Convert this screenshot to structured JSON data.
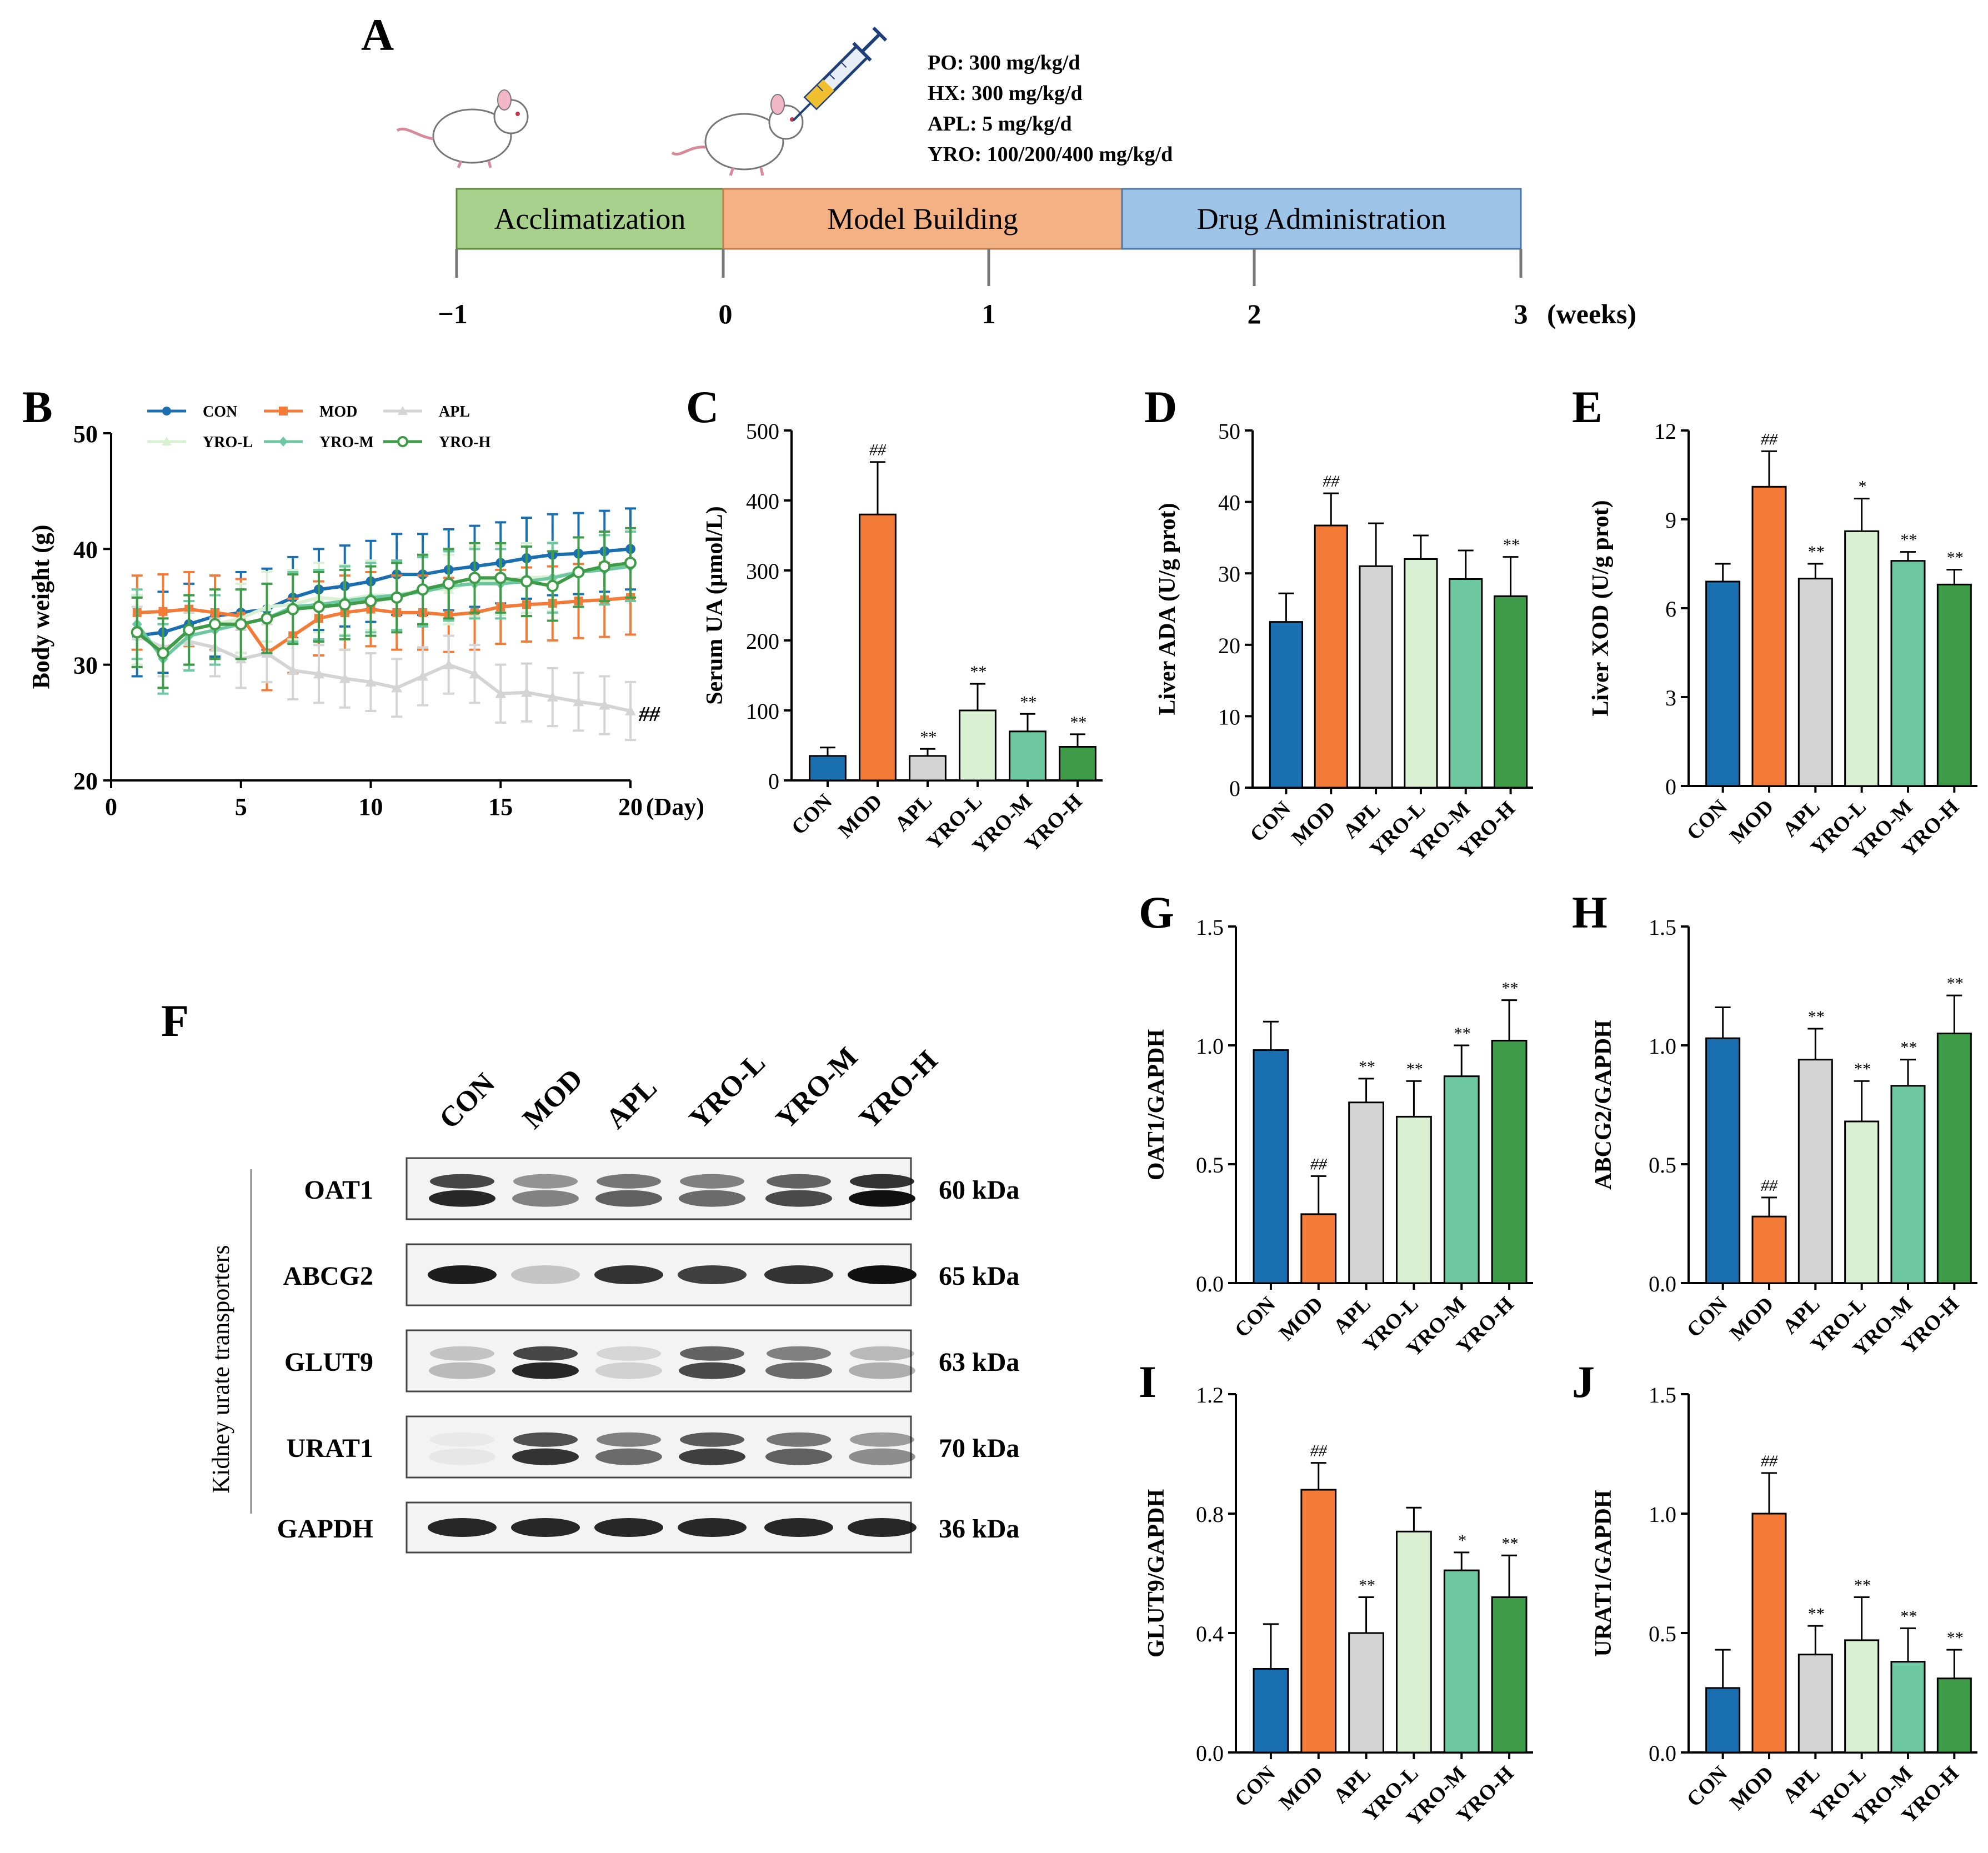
{
  "colors": {
    "CON": "#1a6fb0",
    "MOD": "#f47a37",
    "APL": "#d4d4d4",
    "YRO-L": "#d9f0d3",
    "YRO-M": "#6dc7a0",
    "YRO-H": "#3e9b48",
    "timeline_accl": "#a9d18e",
    "timeline_model": "#f4b183",
    "timeline_drug": "#9dc3e6"
  },
  "panelA": {
    "letter": "A",
    "doses": [
      "PO: 300 mg/kg/d",
      "HX: 300 mg/kg/d",
      "APL: 5 mg/kg/d",
      "YRO: 100/200/400 mg/kg/d"
    ],
    "phases": [
      "Acclimatization",
      "Model Building",
      "Drug Administration"
    ],
    "ticks": [
      "−1",
      "0",
      "1",
      "2",
      "3"
    ],
    "unit": "(weeks)",
    "icons": [
      "mouse-icon",
      "syringe-icon"
    ]
  },
  "panelF": {
    "letter": "F",
    "side_label": "Kidney urate transporters",
    "lanes": [
      "CON",
      "MOD",
      "APL",
      "YRO-L",
      "YRO-M",
      "YRO-H"
    ],
    "proteins": [
      {
        "name": "OAT1",
        "kda": "60 kDa",
        "bands": [
          0.9,
          0.5,
          0.65,
          0.6,
          0.75,
          1.0
        ]
      },
      {
        "name": "ABCG2",
        "kda": "65 kDa",
        "bands": [
          0.95,
          0.2,
          0.85,
          0.8,
          0.85,
          1.0
        ]
      },
      {
        "name": "GLUT9",
        "kda": "63 kDa",
        "bands": [
          0.25,
          0.9,
          0.15,
          0.75,
          0.6,
          0.3
        ]
      },
      {
        "name": "URAT1",
        "kda": "70 kDa",
        "bands": [
          0.05,
          0.85,
          0.6,
          0.8,
          0.65,
          0.45
        ]
      },
      {
        "name": "GAPDH",
        "kda": "36 kDa",
        "bands": [
          0.9,
          0.9,
          0.9,
          0.9,
          0.9,
          0.9
        ]
      }
    ]
  },
  "chart_data": [
    {
      "panel": "B",
      "type": "line",
      "xlabel": "(Day)",
      "ylabel": "Body weight (g)",
      "xlim": [
        0,
        20
      ],
      "ylim": [
        20,
        50
      ],
      "xticks": [
        "0",
        "5",
        "10",
        "15",
        "20"
      ],
      "yticks": [
        "20",
        "30",
        "40",
        "50"
      ],
      "annotation": "##",
      "legend": [
        "CON",
        "MOD",
        "APL",
        "YRO-L",
        "YRO-M",
        "YRO-H"
      ],
      "x": [
        1,
        2,
        3,
        4,
        5,
        6,
        7,
        8,
        9,
        10,
        11,
        12,
        13,
        14,
        15,
        16,
        17,
        18,
        19,
        20
      ],
      "series": [
        {
          "name": "CON",
          "values": [
            32.5,
            32.8,
            33.5,
            34.2,
            34.5,
            34.8,
            35.8,
            36.5,
            36.8,
            37.2,
            37.8,
            37.8,
            38.2,
            38.5,
            38.8,
            39.2,
            39.5,
            39.6,
            39.8,
            40.0
          ],
          "err": 3.5
        },
        {
          "name": "MOD",
          "values": [
            34.5,
            34.6,
            34.8,
            34.5,
            34.2,
            31.0,
            32.5,
            34.0,
            34.5,
            34.8,
            34.5,
            34.5,
            34.3,
            34.5,
            35.0,
            35.2,
            35.3,
            35.5,
            35.6,
            35.8
          ],
          "err": 3.2
        },
        {
          "name": "APL",
          "values": [
            32.5,
            31.5,
            32.0,
            31.5,
            30.5,
            31.0,
            29.5,
            29.2,
            28.8,
            28.5,
            28.0,
            29.0,
            30.0,
            29.2,
            27.5,
            27.6,
            27.2,
            26.8,
            26.5,
            26.0
          ],
          "err": 2.5
        },
        {
          "name": "YRO-L",
          "values": [
            33.0,
            31.0,
            33.0,
            33.5,
            34.0,
            35.0,
            35.2,
            35.8,
            35.6,
            36.0,
            36.0,
            36.5,
            36.5,
            37.2,
            37.3,
            37.5,
            37.6,
            38.0,
            38.5,
            38.8
          ],
          "err": 3.0
        },
        {
          "name": "YRO-M",
          "values": [
            33.5,
            30.5,
            32.5,
            33.0,
            33.5,
            34.0,
            35.0,
            35.2,
            35.5,
            35.8,
            36.0,
            36.3,
            36.8,
            37.0,
            37.0,
            37.2,
            37.5,
            38.0,
            38.2,
            38.5
          ],
          "err": 3.0
        },
        {
          "name": "YRO-H",
          "values": [
            32.8,
            31.0,
            33.0,
            33.5,
            33.5,
            34.0,
            34.8,
            35.0,
            35.2,
            35.5,
            35.8,
            36.5,
            37.0,
            37.5,
            37.5,
            37.2,
            36.8,
            38.0,
            38.5,
            38.8
          ],
          "err": 3.0
        }
      ]
    },
    {
      "panel": "C",
      "type": "bar",
      "ylabel": "Serum UA (μmol/L)",
      "ylim": [
        0,
        500
      ],
      "yticks": [
        "0",
        "100",
        "200",
        "300",
        "400",
        "500"
      ],
      "categories": [
        "CON",
        "MOD",
        "APL",
        "YRO-L",
        "YRO-M",
        "YRO-H"
      ],
      "values": [
        35,
        380,
        35,
        100,
        70,
        48
      ],
      "errors": [
        12,
        75,
        10,
        38,
        25,
        18
      ],
      "sig": [
        "",
        "##",
        "**",
        "**",
        "**",
        "**"
      ]
    },
    {
      "panel": "D",
      "type": "bar",
      "ylabel": "Liver ADA (U/g prot)",
      "ylim": [
        0,
        50
      ],
      "yticks": [
        "0",
        "10",
        "20",
        "30",
        "40",
        "50"
      ],
      "categories": [
        "CON",
        "MOD",
        "APL",
        "YRO-L",
        "YRO-M",
        "YRO-H"
      ],
      "values": [
        23.2,
        36.7,
        31.0,
        32.0,
        29.2,
        26.8
      ],
      "errors": [
        4.0,
        4.5,
        6.0,
        3.3,
        4.0,
        5.5
      ],
      "sig": [
        "",
        "##",
        "",
        "",
        "",
        "**"
      ]
    },
    {
      "panel": "E",
      "type": "bar",
      "ylabel": "Liver XOD (U/g prot)",
      "ylim": [
        0,
        12
      ],
      "yticks": [
        "0",
        "3",
        "6",
        "9",
        "12"
      ],
      "categories": [
        "CON",
        "MOD",
        "APL",
        "YRO-L",
        "YRO-M",
        "YRO-H"
      ],
      "values": [
        6.9,
        10.1,
        7.0,
        8.6,
        7.6,
        6.8
      ],
      "errors": [
        0.6,
        1.2,
        0.5,
        1.1,
        0.3,
        0.5
      ],
      "sig": [
        "",
        "##",
        "**",
        "*",
        "**",
        "**"
      ]
    },
    {
      "panel": "G",
      "type": "bar",
      "ylabel": "OAT1/GAPDH",
      "ylim": [
        0,
        1.5
      ],
      "yticks": [
        "0.0",
        "0.5",
        "1.0",
        "1.5"
      ],
      "categories": [
        "CON",
        "MOD",
        "APL",
        "YRO-L",
        "YRO-M",
        "YRO-H"
      ],
      "values": [
        0.98,
        0.29,
        0.76,
        0.7,
        0.87,
        1.02
      ],
      "errors": [
        0.12,
        0.16,
        0.1,
        0.15,
        0.13,
        0.17
      ],
      "sig": [
        "",
        "##",
        "**",
        "**",
        "**",
        "**"
      ]
    },
    {
      "panel": "H",
      "type": "bar",
      "ylabel": "ABCG2/GAPDH",
      "ylim": [
        0,
        1.5
      ],
      "yticks": [
        "0.0",
        "0.5",
        "1.0",
        "1.5"
      ],
      "categories": [
        "CON",
        "MOD",
        "APL",
        "YRO-L",
        "YRO-M",
        "YRO-H"
      ],
      "values": [
        1.03,
        0.28,
        0.94,
        0.68,
        0.83,
        1.05
      ],
      "errors": [
        0.13,
        0.08,
        0.13,
        0.17,
        0.11,
        0.16
      ],
      "sig": [
        "",
        "##",
        "**",
        "**",
        "**",
        "**"
      ]
    },
    {
      "panel": "I",
      "type": "bar",
      "ylabel": "GLUT9/GAPDH",
      "ylim": [
        0,
        1.2
      ],
      "yticks": [
        "0.0",
        "0.4",
        "0.8",
        "1.2"
      ],
      "categories": [
        "CON",
        "MOD",
        "APL",
        "YRO-L",
        "YRO-M",
        "YRO-H"
      ],
      "values": [
        0.28,
        0.88,
        0.4,
        0.74,
        0.61,
        0.52
      ],
      "errors": [
        0.15,
        0.09,
        0.12,
        0.08,
        0.06,
        0.14
      ],
      "sig": [
        "",
        "##",
        "**",
        "",
        "*",
        "**"
      ]
    },
    {
      "panel": "J",
      "type": "bar",
      "ylabel": "URAT1/GAPDH",
      "ylim": [
        0,
        1.5
      ],
      "yticks": [
        "0.0",
        "0.5",
        "1.0",
        "1.5"
      ],
      "categories": [
        "CON",
        "MOD",
        "APL",
        "YRO-L",
        "YRO-M",
        "YRO-H"
      ],
      "values": [
        0.27,
        1.0,
        0.41,
        0.47,
        0.38,
        0.31
      ],
      "errors": [
        0.16,
        0.17,
        0.12,
        0.18,
        0.14,
        0.12
      ],
      "sig": [
        "",
        "##",
        "**",
        "**",
        "**",
        "**"
      ]
    }
  ]
}
